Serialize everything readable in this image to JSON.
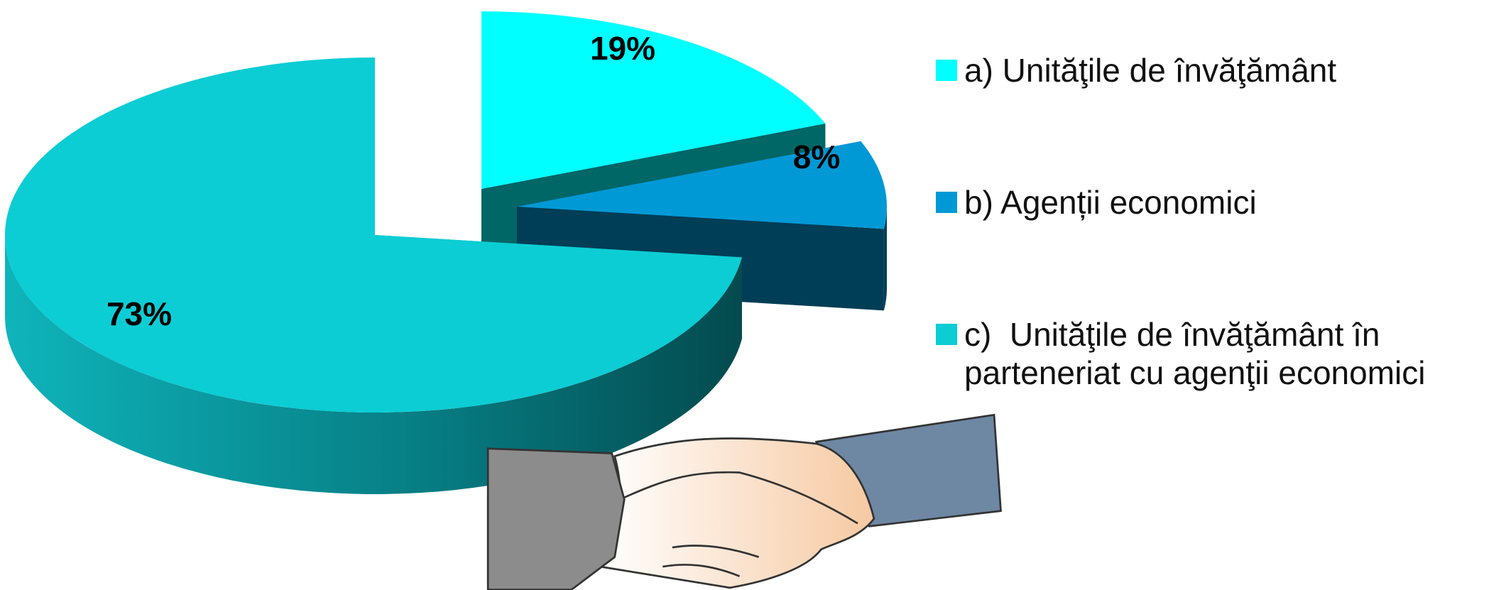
{
  "chart_data": {
    "type": "pie",
    "categories": [
      "a) Unităţile de învăţământ",
      "b) Agenții economici",
      "c)  Unităţile de învăţământ în parteneriat cu agenţii economici"
    ],
    "values": [
      19,
      8,
      73
    ],
    "value_labels": [
      "19%",
      "8%",
      "73%"
    ],
    "colors": [
      "#00ffff",
      "#0099d6",
      "#0ccdd4"
    ]
  }
}
